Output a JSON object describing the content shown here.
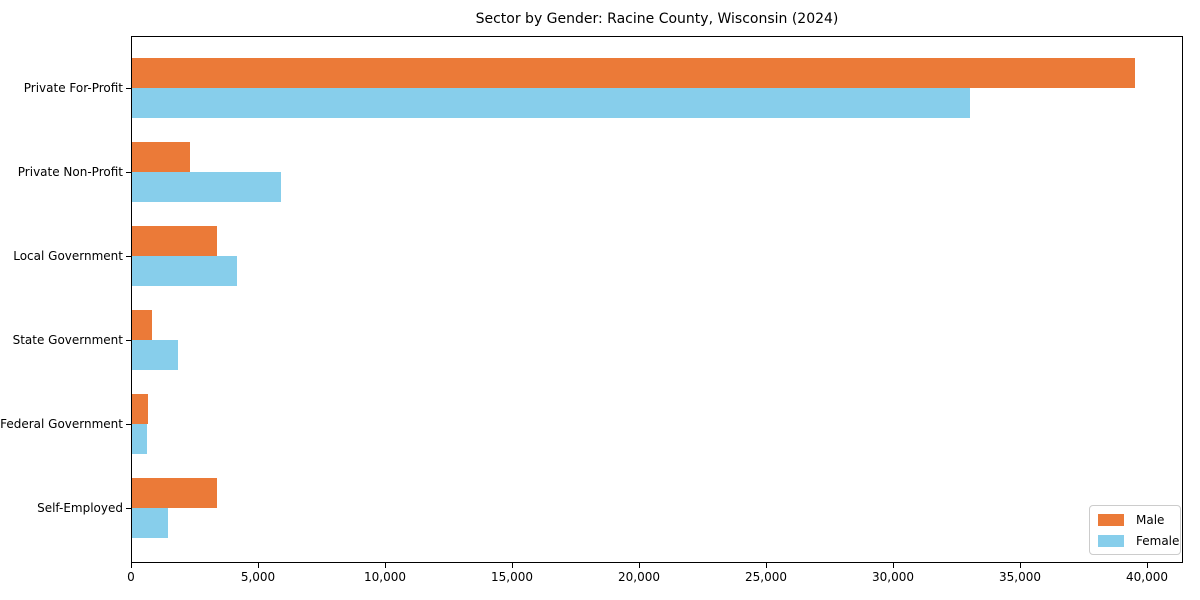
{
  "chart_data": {
    "type": "bar",
    "orientation": "horizontal",
    "title": "Sector by Gender: Racine County, Wisconsin (2024)",
    "categories": [
      "Private For-Profit",
      "Private Non-Profit",
      "Local Government",
      "State Government",
      "Federal Government",
      "Self-Employed"
    ],
    "series": [
      {
        "name": "Male",
        "color": "#eb7a38",
        "values": [
          39500,
          2300,
          3360,
          780,
          630,
          3340
        ]
      },
      {
        "name": "Female",
        "color": "#87ceeb",
        "values": [
          33000,
          5870,
          4120,
          1800,
          590,
          1430
        ]
      }
    ],
    "xlim": [
      0,
      40000
    ],
    "xticks": [
      0,
      5000,
      10000,
      15000,
      20000,
      25000,
      30000,
      35000,
      40000
    ],
    "xtick_labels": [
      "0",
      "5,000",
      "10,000",
      "15,000",
      "20,000",
      "25,000",
      "30,000",
      "35,000",
      "40,000"
    ],
    "xlabel": "",
    "ylabel": "",
    "grid": false,
    "legend_position": "lower right"
  },
  "colors": {
    "male": "#eb7a38",
    "female": "#87ceeb",
    "axis": "#000000",
    "legend_border": "#cccccc",
    "background": "#ffffff"
  }
}
